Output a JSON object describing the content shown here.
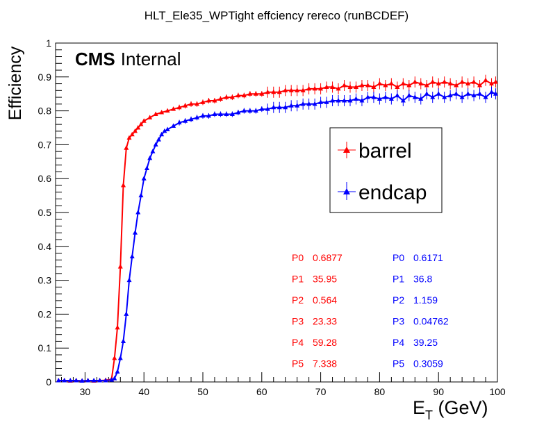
{
  "chart_data": {
    "type": "scatter",
    "title": "HLT_Ele35_WPTight effciency  rereco (runBCDEF)",
    "xlabel_main": "E",
    "xlabel_sub": "T",
    "xlabel_rest": " (GeV)",
    "ylabel": "Efficiency",
    "xlim": [
      25,
      100
    ],
    "ylim": [
      0,
      1
    ],
    "x_ticks": [
      "30",
      "40",
      "50",
      "60",
      "70",
      "80",
      "90",
      "100"
    ],
    "y_ticks": [
      "0",
      "0.1",
      "0.2",
      "0.3",
      "0.4",
      "0.5",
      "0.6",
      "0.7",
      "0.8",
      "0.9",
      "1"
    ],
    "tag_bold": "CMS",
    "tag_rest": "Internal",
    "legend_position": "upper-right",
    "series": [
      {
        "name": "barrel",
        "color": "#ff0000",
        "fit": {
          "P0": 0.6877,
          "P1": 35.95,
          "P2": 0.564,
          "P3": 23.33,
          "P4": 59.28,
          "P5": 7.338
        },
        "points": [
          [
            25.5,
            0.004
          ],
          [
            26.5,
            0.004
          ],
          [
            27.5,
            0.003
          ],
          [
            28.5,
            0.004
          ],
          [
            29.5,
            0.003
          ],
          [
            30.5,
            0.004
          ],
          [
            31.5,
            0.003
          ],
          [
            32.5,
            0.004
          ],
          [
            33.5,
            0.005
          ],
          [
            34.5,
            0.008
          ],
          [
            35.0,
            0.07
          ],
          [
            35.5,
            0.16
          ],
          [
            36.0,
            0.34
          ],
          [
            36.5,
            0.58
          ],
          [
            37.0,
            0.69
          ],
          [
            37.5,
            0.72
          ],
          [
            38.0,
            0.73
          ],
          [
            38.5,
            0.74
          ],
          [
            39.0,
            0.75
          ],
          [
            39.5,
            0.76
          ],
          [
            40.0,
            0.77
          ],
          [
            41.0,
            0.78
          ],
          [
            42.0,
            0.79
          ],
          [
            43.0,
            0.795
          ],
          [
            44.0,
            0.8
          ],
          [
            45.0,
            0.805
          ],
          [
            46.0,
            0.81
          ],
          [
            47.0,
            0.815
          ],
          [
            48.0,
            0.82
          ],
          [
            49.0,
            0.82
          ],
          [
            50.0,
            0.825
          ],
          [
            51.0,
            0.83
          ],
          [
            52.0,
            0.83
          ],
          [
            53.0,
            0.835
          ],
          [
            54.0,
            0.84
          ],
          [
            55.0,
            0.84
          ],
          [
            56.0,
            0.845
          ],
          [
            57.0,
            0.845
          ],
          [
            58.0,
            0.85
          ],
          [
            59.0,
            0.85
          ],
          [
            60.0,
            0.85
          ],
          [
            61.0,
            0.855
          ],
          [
            62.0,
            0.855
          ],
          [
            63.0,
            0.855
          ],
          [
            64.0,
            0.86
          ],
          [
            65.0,
            0.86
          ],
          [
            66.0,
            0.86
          ],
          [
            67.0,
            0.86
          ],
          [
            68.0,
            0.865
          ],
          [
            69.0,
            0.865
          ],
          [
            70.0,
            0.865
          ],
          [
            71.0,
            0.87
          ],
          [
            72.0,
            0.87
          ],
          [
            73.0,
            0.865
          ],
          [
            74.0,
            0.875
          ],
          [
            75.0,
            0.87
          ],
          [
            76.0,
            0.87
          ],
          [
            77.0,
            0.875
          ],
          [
            78.0,
            0.875
          ],
          [
            79.0,
            0.87
          ],
          [
            80.0,
            0.88
          ],
          [
            81.0,
            0.875
          ],
          [
            82.0,
            0.88
          ],
          [
            83.0,
            0.87
          ],
          [
            84.0,
            0.88
          ],
          [
            85.0,
            0.875
          ],
          [
            86.0,
            0.885
          ],
          [
            87.0,
            0.88
          ],
          [
            88.0,
            0.875
          ],
          [
            89.0,
            0.885
          ],
          [
            90.0,
            0.88
          ],
          [
            91.0,
            0.885
          ],
          [
            92.0,
            0.88
          ],
          [
            93.0,
            0.875
          ],
          [
            94.0,
            0.885
          ],
          [
            95.0,
            0.88
          ],
          [
            96.0,
            0.885
          ],
          [
            97.0,
            0.875
          ],
          [
            98.0,
            0.89
          ],
          [
            99.0,
            0.88
          ],
          [
            99.7,
            0.885
          ]
        ]
      },
      {
        "name": "endcap",
        "color": "#0000ff",
        "fit": {
          "P0": 0.6171,
          "P1": 36.8,
          "P2": 1.159,
          "P3": 0.04762,
          "P4": 39.25,
          "P5": 0.3059
        },
        "points": [
          [
            25.5,
            0.004
          ],
          [
            26.5,
            0.004
          ],
          [
            27.5,
            0.004
          ],
          [
            28.5,
            0.004
          ],
          [
            29.5,
            0.003
          ],
          [
            30.5,
            0.004
          ],
          [
            31.5,
            0.004
          ],
          [
            32.5,
            0.004
          ],
          [
            33.5,
            0.004
          ],
          [
            34.5,
            0.006
          ],
          [
            35.0,
            0.01
          ],
          [
            35.5,
            0.03
          ],
          [
            36.0,
            0.07
          ],
          [
            36.5,
            0.12
          ],
          [
            37.0,
            0.2
          ],
          [
            37.5,
            0.3
          ],
          [
            38.0,
            0.37
          ],
          [
            38.5,
            0.44
          ],
          [
            39.0,
            0.5
          ],
          [
            39.5,
            0.55
          ],
          [
            40.0,
            0.6
          ],
          [
            40.5,
            0.63
          ],
          [
            41.0,
            0.66
          ],
          [
            41.5,
            0.68
          ],
          [
            42.0,
            0.7
          ],
          [
            42.5,
            0.715
          ],
          [
            43.0,
            0.73
          ],
          [
            43.5,
            0.74
          ],
          [
            44.0,
            0.745
          ],
          [
            45.0,
            0.755
          ],
          [
            46.0,
            0.765
          ],
          [
            47.0,
            0.77
          ],
          [
            48.0,
            0.775
          ],
          [
            49.0,
            0.78
          ],
          [
            50.0,
            0.785
          ],
          [
            51.0,
            0.785
          ],
          [
            52.0,
            0.79
          ],
          [
            53.0,
            0.79
          ],
          [
            54.0,
            0.79
          ],
          [
            55.0,
            0.79
          ],
          [
            56.0,
            0.795
          ],
          [
            57.0,
            0.8
          ],
          [
            58.0,
            0.8
          ],
          [
            59.0,
            0.8
          ],
          [
            60.0,
            0.805
          ],
          [
            61.0,
            0.805
          ],
          [
            62.0,
            0.81
          ],
          [
            63.0,
            0.81
          ],
          [
            64.0,
            0.81
          ],
          [
            65.0,
            0.815
          ],
          [
            66.0,
            0.815
          ],
          [
            67.0,
            0.82
          ],
          [
            68.0,
            0.82
          ],
          [
            69.0,
            0.82
          ],
          [
            70.0,
            0.825
          ],
          [
            71.0,
            0.825
          ],
          [
            72.0,
            0.83
          ],
          [
            73.0,
            0.83
          ],
          [
            74.0,
            0.83
          ],
          [
            75.0,
            0.83
          ],
          [
            76.0,
            0.835
          ],
          [
            77.0,
            0.83
          ],
          [
            78.0,
            0.84
          ],
          [
            79.0,
            0.84
          ],
          [
            80.0,
            0.835
          ],
          [
            81.0,
            0.84
          ],
          [
            82.0,
            0.835
          ],
          [
            83.0,
            0.845
          ],
          [
            84.0,
            0.83
          ],
          [
            85.0,
            0.845
          ],
          [
            86.0,
            0.84
          ],
          [
            87.0,
            0.835
          ],
          [
            88.0,
            0.85
          ],
          [
            89.0,
            0.84
          ],
          [
            90.0,
            0.85
          ],
          [
            91.0,
            0.84
          ],
          [
            92.0,
            0.845
          ],
          [
            93.0,
            0.85
          ],
          [
            94.0,
            0.84
          ],
          [
            95.0,
            0.85
          ],
          [
            96.0,
            0.845
          ],
          [
            97.0,
            0.85
          ],
          [
            98.0,
            0.84
          ],
          [
            99.0,
            0.855
          ],
          [
            99.7,
            0.85
          ]
        ]
      }
    ]
  }
}
